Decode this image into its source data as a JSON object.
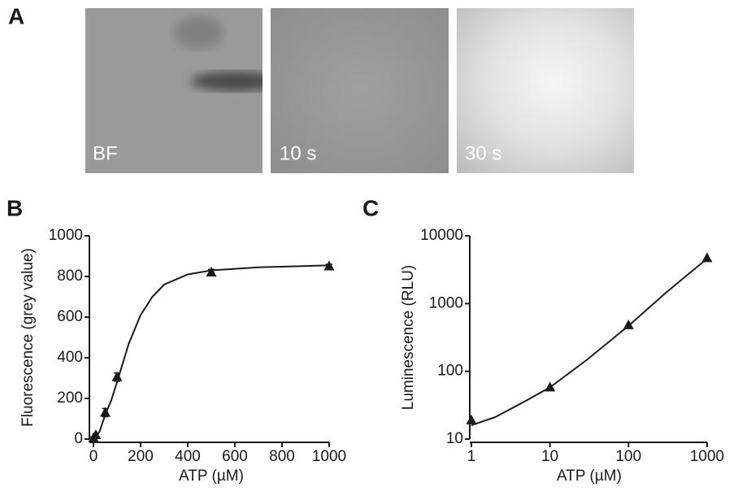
{
  "panel_labels": [
    "A",
    "B",
    "C"
  ],
  "images": [
    {
      "label": "BF"
    },
    {
      "label": "10 s"
    },
    {
      "label": "30 s"
    }
  ],
  "chart_data": [
    {
      "type": "scatter",
      "xlabel": "ATP (µM)",
      "ylabel": "Fluorescence (grey value)",
      "xscale": "linear",
      "yscale": "linear",
      "xlim": [
        0,
        1000
      ],
      "ylim": [
        0,
        1000
      ],
      "xticks": [
        0,
        200,
        400,
        600,
        800,
        1000
      ],
      "yticks": [
        0,
        200,
        400,
        600,
        800,
        1000
      ],
      "color": "#1a1a1a",
      "series": [
        {
          "marker": "triangle",
          "x": [
            0,
            10,
            50,
            100,
            500,
            1000
          ],
          "values": [
            5,
            20,
            130,
            305,
            820,
            850
          ],
          "errors": [
            5,
            8,
            20,
            20,
            15,
            10
          ]
        },
        {
          "style": "line",
          "x": [
            0,
            25,
            50,
            75,
            100,
            150,
            200,
            250,
            300,
            400,
            500,
            700,
            1000
          ],
          "values": [
            0,
            35,
            120,
            190,
            280,
            470,
            610,
            700,
            760,
            810,
            830,
            845,
            855
          ]
        }
      ]
    },
    {
      "type": "scatter",
      "xlabel": "ATP (µM)",
      "ylabel": "Luminescence (RLU)",
      "xscale": "log",
      "yscale": "log",
      "xlim": [
        1,
        1000
      ],
      "ylim": [
        10,
        10000
      ],
      "xticks": [
        1,
        10,
        100,
        1000
      ],
      "yticks": [
        10,
        100,
        1000,
        10000
      ],
      "color": "#1a1a1a",
      "series": [
        {
          "marker": "triangle",
          "x": [
            1,
            10,
            100,
            1000
          ],
          "values": [
            19,
            58,
            480,
            4700
          ]
        },
        {
          "style": "line",
          "x": [
            1,
            2,
            3,
            5,
            10,
            30,
            100,
            300,
            1000
          ],
          "values": [
            16,
            21,
            27,
            37,
            58,
            150,
            470,
            1450,
            4600
          ]
        }
      ]
    }
  ]
}
